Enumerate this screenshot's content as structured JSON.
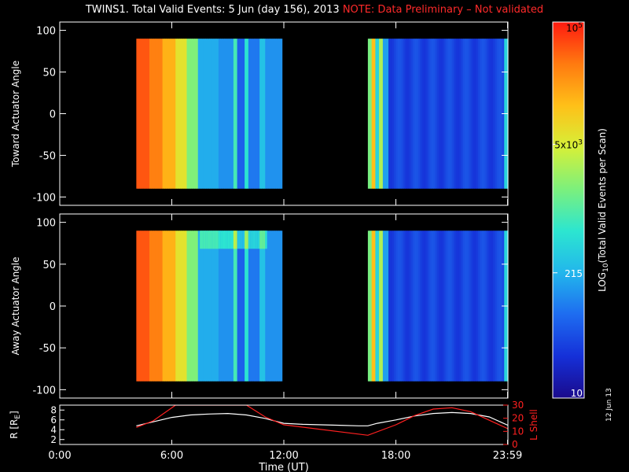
{
  "title": {
    "main": "TWINS1. Total Valid Events:  5 Jun (day 156), 2013",
    "note": "NOTE: Data Preliminary – Not validated"
  },
  "footer_date": "12 Jun 13",
  "colors": {
    "background": "#000000",
    "axes": "#ffffff",
    "note": "#ff2a2a",
    "r_line": "#ffffff",
    "lshell_line": "#ff2020"
  },
  "chart_data": [
    {
      "type": "heatmap",
      "ylabel": "Toward Actuator Angle",
      "ylim": [
        -110,
        110
      ],
      "yticks": [
        -100,
        -50,
        0,
        50,
        100
      ],
      "xlim": [
        0,
        24
      ],
      "data_blocks": [
        {
          "start": 4.1,
          "end": 11.9
        },
        {
          "start": 16.5,
          "end": 24.0
        }
      ],
      "angle_range": [
        -90,
        90
      ]
    },
    {
      "type": "heatmap",
      "ylabel": "Away Actuator Angle",
      "ylim": [
        -110,
        110
      ],
      "yticks": [
        -100,
        -50,
        0,
        50,
        100
      ],
      "xlim": [
        0,
        24
      ],
      "data_blocks": [
        {
          "start": 4.1,
          "end": 11.9
        },
        {
          "start": 16.5,
          "end": 24.0
        }
      ],
      "angle_range": [
        -90,
        90
      ]
    },
    {
      "type": "line",
      "xlabel": "Time (UT)",
      "xticks": [
        "0:00",
        "6:00",
        "12:00",
        "18:00",
        "23:59"
      ],
      "xtick_values": [
        0,
        6,
        12,
        18,
        23.98
      ],
      "ylabel_left": "R [Rₑ]",
      "ylabel_left_prefix": "R [R",
      "ylabel_left_sub": "E",
      "ylabel_left_suffix": "]",
      "ylim_left": [
        1,
        9
      ],
      "yticks_left": [
        2,
        4,
        6,
        8
      ],
      "ylabel_right": "L Shell",
      "ylim_right": [
        0,
        30
      ],
      "yticks_right": [
        0,
        10,
        20,
        30
      ],
      "series": [
        {
          "axis": "left",
          "x": [
            4.1,
            6,
            7,
            8,
            9,
            10,
            11,
            12,
            13,
            14,
            15,
            16,
            16.5,
            17,
            18,
            19,
            20,
            21,
            22,
            23,
            24
          ],
          "y": [
            4.8,
            6.5,
            7.0,
            7.2,
            7.3,
            7.0,
            6.3,
            5.3,
            5.1,
            5.0,
            4.9,
            4.8,
            4.8,
            5.3,
            6.0,
            6.8,
            7.3,
            7.5,
            7.3,
            6.6,
            4.9
          ]
        },
        {
          "axis": "right",
          "x": [
            4.1,
            5,
            6.2,
            10,
            11,
            12,
            16.5,
            18,
            19,
            20,
            21,
            22,
            24
          ],
          "y": [
            13,
            18,
            30,
            30,
            21,
            15,
            7,
            15,
            22,
            27,
            28,
            25,
            12
          ]
        }
      ]
    }
  ],
  "colorbar": {
    "label_prefix": "LOG",
    "label_sub": "10",
    "label_suffix": "(Total Valid Events per Scan)",
    "ticks": [
      {
        "value": 100000,
        "base": "10",
        "exp": "5",
        "color": "#000000"
      },
      {
        "value": 5000,
        "base": "5x10",
        "exp": "3",
        "color": "#000000"
      },
      {
        "value": 215,
        "base": "215",
        "exp": "",
        "color": "#ffffff"
      },
      {
        "value": 10,
        "base": "10",
        "exp": "",
        "color": "#ffffff"
      }
    ],
    "range": [
      10,
      100000
    ],
    "stops": [
      "#1a0a8c",
      "#1530d8",
      "#1e6cf0",
      "#22b6ec",
      "#2ce6d0",
      "#7cf07c",
      "#d6f038",
      "#ffc018",
      "#ff7a10",
      "#ff1a10"
    ]
  }
}
